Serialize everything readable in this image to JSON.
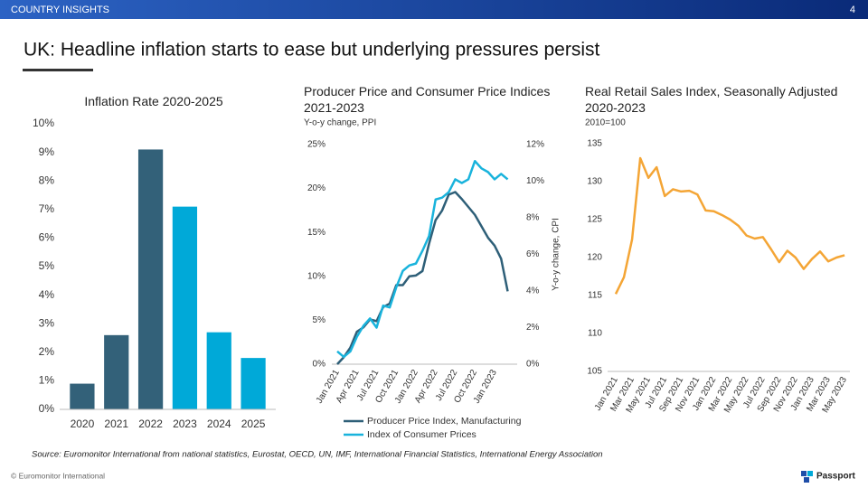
{
  "header": {
    "section": "COUNTRY INSIGHTS",
    "page": "4"
  },
  "title": "UK: Headline inflation starts to ease but underlying pressures persist",
  "chart_data": [
    {
      "type": "bar",
      "title": "Inflation Rate 2020-2025",
      "categories": [
        "2020",
        "2021",
        "2022",
        "2023",
        "2024",
        "2025"
      ],
      "values": [
        0.9,
        2.6,
        9.1,
        7.1,
        2.7,
        1.8
      ],
      "colors": [
        "#336179",
        "#336179",
        "#336179",
        "#00a9d8",
        "#00a9d8",
        "#00a9d8"
      ],
      "ylim": [
        0,
        10
      ],
      "yticks": [
        {
          "value": 0,
          "label": "0%"
        },
        {
          "value": 1,
          "label": "1%"
        },
        {
          "value": 2,
          "label": "2%"
        },
        {
          "value": 3,
          "label": "3%"
        },
        {
          "value": 4,
          "label": "4%"
        },
        {
          "value": 5,
          "label": "5%"
        },
        {
          "value": 6,
          "label": "6%"
        },
        {
          "value": 7,
          "label": "7%"
        },
        {
          "value": 8,
          "label": "8%"
        },
        {
          "value": 9,
          "label": "9%"
        },
        {
          "value": 10,
          "label": "10%"
        }
      ],
      "grid": false
    },
    {
      "type": "line",
      "title": "Producer Price and Consumer Price Indices 2021-2023",
      "subtitle": "Y-o-y change, PPI",
      "y2label": "Y-o-y change, CPI",
      "categories": [
        "Jan 2021",
        null,
        null,
        "Apr 2021",
        null,
        null,
        "Jul 2021",
        null,
        null,
        "Oct 2021",
        null,
        null,
        "Jan 2022",
        null,
        null,
        "Apr 2022",
        null,
        null,
        "Jul 2022",
        null,
        null,
        "Oct 2022",
        null,
        null,
        "Jan 2023",
        null,
        null
      ],
      "series": [
        {
          "name": "Producer Price Index, Manufacturing",
          "color": "#2e5f78",
          "values": [
            0,
            0.8,
            1.9,
            3.7,
            4.2,
            5.1,
            4.9,
            6.5,
            6.9,
            9.0,
            9.0,
            10.0,
            10.1,
            10.6,
            13.7,
            16.4,
            17.5,
            19.3,
            19.6,
            18.8,
            17.9,
            17.0,
            15.7,
            14.4,
            13.5,
            12.0,
            8.3
          ]
        },
        {
          "name": "Index of Consumer Prices",
          "color": "#19b3dc",
          "axis": "y2",
          "values": [
            0.7,
            0.4,
            0.7,
            1.5,
            2.1,
            2.5,
            2.0,
            3.2,
            3.1,
            4.2,
            5.1,
            5.4,
            5.5,
            6.2,
            7.0,
            9.0,
            9.1,
            9.4,
            10.1,
            9.9,
            10.1,
            11.1,
            10.7,
            10.5,
            10.1,
            10.4,
            10.1
          ]
        }
      ],
      "ylim": [
        0,
        25
      ],
      "yticks": [
        {
          "value": 0,
          "label": "0%"
        },
        {
          "value": 5,
          "label": "5%"
        },
        {
          "value": 10,
          "label": "10%"
        },
        {
          "value": 15,
          "label": "15%"
        },
        {
          "value": 20,
          "label": "20%"
        },
        {
          "value": 25,
          "label": "25%"
        }
      ],
      "y2lim": [
        0,
        12
      ],
      "y2ticks": [
        {
          "value": 0,
          "label": "0%"
        },
        {
          "value": 2,
          "label": "2%"
        },
        {
          "value": 4,
          "label": "4%"
        },
        {
          "value": 6,
          "label": "6%"
        },
        {
          "value": 8,
          "label": "8%"
        },
        {
          "value": 10,
          "label": "10%"
        },
        {
          "value": 12,
          "label": "12%"
        }
      ],
      "legend": "bottom",
      "grid": false
    },
    {
      "type": "line",
      "title": "Real Retail Sales Index, Seasonally Adjusted 2020-2023",
      "subtitle": "2010=100",
      "categories": [
        "Jan 2021",
        null,
        "Mar 2021",
        null,
        "May 2021",
        null,
        "Jul 2021",
        null,
        "Sep 2021",
        null,
        "Nov 2021",
        null,
        "Jan 2022",
        null,
        "Mar 2022",
        null,
        "May 2022",
        null,
        "Jul 2022",
        null,
        "Sep 2022",
        null,
        "Nov 2022",
        null,
        "Jan 2023",
        null,
        "Mar 2023",
        null,
        "May 2023"
      ],
      "series": [
        {
          "name": "Real Retail Sales Index",
          "color": "#f4a535",
          "values": [
            115.2,
            117.4,
            122.4,
            133.1,
            130.5,
            131.9,
            128.1,
            129.0,
            128.7,
            128.8,
            128.3,
            126.2,
            126.1,
            125.6,
            125.0,
            124.2,
            122.9,
            122.5,
            122.7,
            121.1,
            119.4,
            120.9,
            120.0,
            118.5,
            119.8,
            120.8,
            119.5,
            120.0,
            120.3
          ]
        }
      ],
      "ylim": [
        105,
        135
      ],
      "yticks": [
        105,
        110,
        115,
        120,
        125,
        130,
        135
      ],
      "legend": "none",
      "grid": false
    }
  ],
  "source": "Source: Euromonitor International from national statistics, Eurostat, OECD, UN, IMF, International Financial Statistics, International Energy Association",
  "footer": {
    "copyright": "© Euromonitor International",
    "brand": "Passport"
  }
}
